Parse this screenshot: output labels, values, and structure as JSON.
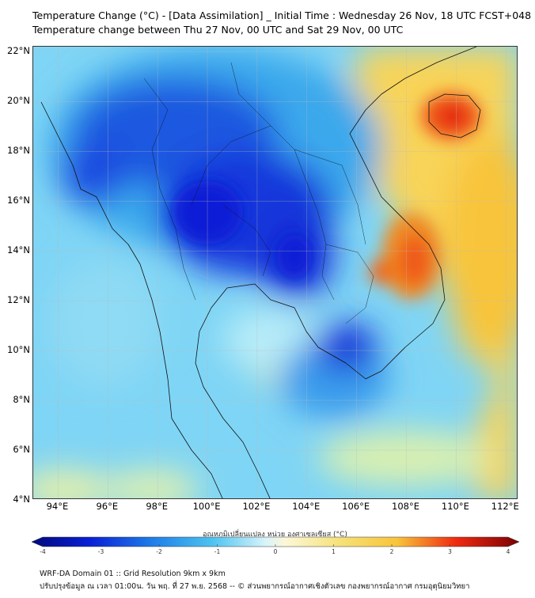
{
  "title_line1": "Temperature Change (°C) - [Data Assimilation] _ Initial Time : Wednesday 26 Nov, 18 UTC FCST+048",
  "title_line2": "Temperature change between Thu 27 Nov, 00 UTC and Sat 29 Nov, 00 UTC",
  "map": {
    "lon_range": [
      93,
      112.5
    ],
    "lat_range": [
      4,
      22.2
    ],
    "lat_ticks": [
      {
        "value": 22,
        "label": "22°N"
      },
      {
        "value": 20,
        "label": "20°N"
      },
      {
        "value": 18,
        "label": "18°N"
      },
      {
        "value": 16,
        "label": "16°N"
      },
      {
        "value": 14,
        "label": "14°N"
      },
      {
        "value": 12,
        "label": "12°N"
      },
      {
        "value": 10,
        "label": "10°N"
      },
      {
        "value": 8,
        "label": "8°N"
      },
      {
        "value": 6,
        "label": "6°N"
      },
      {
        "value": 4,
        "label": "4°N"
      }
    ],
    "lon_ticks": [
      {
        "value": 94,
        "label": "94°E"
      },
      {
        "value": 96,
        "label": "96°E"
      },
      {
        "value": 98,
        "label": "98°E"
      },
      {
        "value": 100,
        "label": "100°E"
      },
      {
        "value": 102,
        "label": "102°E"
      },
      {
        "value": 104,
        "label": "104°E"
      },
      {
        "value": 106,
        "label": "106°E"
      },
      {
        "value": 108,
        "label": "108°E"
      },
      {
        "value": 110,
        "label": "110°E"
      },
      {
        "value": 112,
        "label": "112°E"
      }
    ],
    "colors": {
      "strong_cooling": "#0a1fd6",
      "cooling": "#1f7fe8",
      "mild_cooling": "#4cc3f0",
      "neutral": "#a9e6f6",
      "mild_warming": "#f6e27a",
      "warming": "#f8c43a",
      "strong_warming": "#ef5a1a",
      "extreme_warming": "#e41e10"
    }
  },
  "colorbar": {
    "label": "อุณหภูมิเปลี่ยนแปลง หน่วย องศาเซลเซียส (°C)",
    "min": -4,
    "max": 4,
    "ticks": [
      {
        "value": -4,
        "label": "-4"
      },
      {
        "value": -3,
        "label": "-3"
      },
      {
        "value": -2,
        "label": "-2"
      },
      {
        "value": -1,
        "label": "-1"
      },
      {
        "value": 0,
        "label": "0"
      },
      {
        "value": 1,
        "label": "1"
      },
      {
        "value": 2,
        "label": "2"
      },
      {
        "value": 3,
        "label": "3"
      },
      {
        "value": 4,
        "label": "4"
      }
    ]
  },
  "footer_line1": "WRF-DA Domain 01 :: Grid Resolution 9km x 9km",
  "footer_line2": "ปรับปรุงข้อมูล ณ เวลา 01:00น. วัน พฤ. ที่ 27 พ.ย. 2568 -- © ส่วนพยากรณ์อากาศเชิงตัวเลข กองพยากรณ์อากาศ กรมอุตุนิยมวิทยา"
}
